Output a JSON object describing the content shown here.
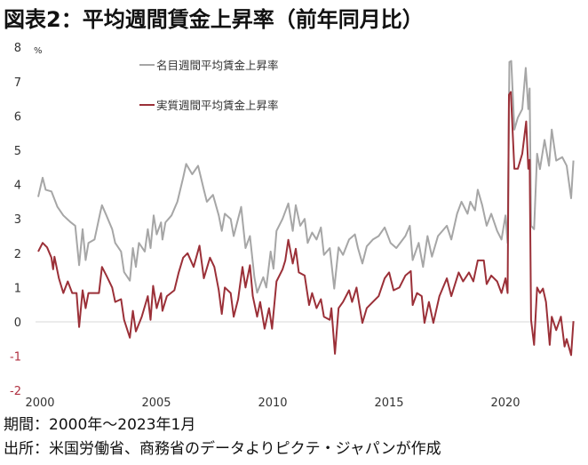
{
  "title": "図表2：平均週間賃金上昇率（前年同月比）",
  "notes": [
    "期間：2000年～2023年1月",
    "出所：米国労働省、商務省のデータよりピクテ・ジャパンが作成"
  ],
  "chart_data": {
    "type": "line",
    "title": "図表2：平均週間賃金上昇率（前年同月比）",
    "ylabel": "%",
    "xlabel": "",
    "xlim": [
      2000,
      2023
    ],
    "ylim": [
      -2,
      8
    ],
    "xticks": [
      2000,
      2005,
      2010,
      2015,
      2020
    ],
    "yticks": [
      8,
      7,
      6,
      5,
      4,
      3,
      2,
      1,
      0,
      -1,
      -2
    ],
    "legend_position": "top-center",
    "grid": false,
    "series": [
      {
        "name": "名目週間平均賃金上昇率",
        "color": "#a6a6a6",
        "points": [
          [
            2000.0,
            3.64
          ],
          [
            2000.19,
            4.2
          ],
          [
            2000.32,
            3.85
          ],
          [
            2000.57,
            3.8
          ],
          [
            2000.83,
            3.35
          ],
          [
            2001.08,
            3.1
          ],
          [
            2001.4,
            2.9
          ],
          [
            2001.59,
            2.8
          ],
          [
            2001.76,
            1.65
          ],
          [
            2001.91,
            2.7
          ],
          [
            2002.04,
            1.8
          ],
          [
            2002.16,
            2.3
          ],
          [
            2002.42,
            2.4
          ],
          [
            2002.67,
            3.2
          ],
          [
            2002.74,
            3.4
          ],
          [
            2002.93,
            3.1
          ],
          [
            2003.18,
            2.7
          ],
          [
            2003.31,
            2.3
          ],
          [
            2003.56,
            2.05
          ],
          [
            2003.69,
            1.45
          ],
          [
            2003.94,
            1.2
          ],
          [
            2004.07,
            2.15
          ],
          [
            2004.2,
            1.6
          ],
          [
            2004.33,
            2.3
          ],
          [
            2004.58,
            2.05
          ],
          [
            2004.71,
            2.7
          ],
          [
            2004.83,
            2.15
          ],
          [
            2004.96,
            3.1
          ],
          [
            2005.09,
            2.55
          ],
          [
            2005.28,
            2.9
          ],
          [
            2005.34,
            2.4
          ],
          [
            2005.47,
            2.9
          ],
          [
            2005.73,
            3.1
          ],
          [
            2005.98,
            3.5
          ],
          [
            2006.23,
            4.2
          ],
          [
            2006.36,
            4.6
          ],
          [
            2006.62,
            4.3
          ],
          [
            2006.87,
            4.55
          ],
          [
            2007.12,
            3.85
          ],
          [
            2007.25,
            3.5
          ],
          [
            2007.51,
            3.7
          ],
          [
            2007.76,
            3.1
          ],
          [
            2007.89,
            2.65
          ],
          [
            2008.02,
            3.15
          ],
          [
            2008.27,
            3.0
          ],
          [
            2008.4,
            2.5
          ],
          [
            2008.72,
            3.35
          ],
          [
            2008.91,
            2.15
          ],
          [
            2009.1,
            2.5
          ],
          [
            2009.29,
            1.3
          ],
          [
            2009.41,
            0.85
          ],
          [
            2009.67,
            1.3
          ],
          [
            2009.8,
            1.0
          ],
          [
            2009.99,
            2.05
          ],
          [
            2010.11,
            1.55
          ],
          [
            2010.24,
            2.65
          ],
          [
            2010.5,
            3.0
          ],
          [
            2010.75,
            3.45
          ],
          [
            2010.94,
            2.65
          ],
          [
            2011.07,
            3.4
          ],
          [
            2011.26,
            2.8
          ],
          [
            2011.45,
            3.0
          ],
          [
            2011.58,
            2.3
          ],
          [
            2011.77,
            2.6
          ],
          [
            2011.96,
            2.4
          ],
          [
            2012.15,
            2.75
          ],
          [
            2012.28,
            1.95
          ],
          [
            2012.53,
            2.15
          ],
          [
            2012.72,
            0.97
          ],
          [
            2012.91,
            2.17
          ],
          [
            2013.1,
            1.95
          ],
          [
            2013.36,
            2.4
          ],
          [
            2013.61,
            2.55
          ],
          [
            2013.74,
            2.15
          ],
          [
            2013.93,
            1.7
          ],
          [
            2014.12,
            2.2
          ],
          [
            2014.38,
            2.4
          ],
          [
            2014.63,
            2.5
          ],
          [
            2014.89,
            2.75
          ],
          [
            2015.14,
            2.3
          ],
          [
            2015.39,
            2.15
          ],
          [
            2015.78,
            2.5
          ],
          [
            2015.97,
            2.8
          ],
          [
            2016.09,
            1.8
          ],
          [
            2016.35,
            2.3
          ],
          [
            2016.54,
            1.6
          ],
          [
            2016.73,
            2.5
          ],
          [
            2016.92,
            1.9
          ],
          [
            2017.18,
            2.5
          ],
          [
            2017.56,
            2.8
          ],
          [
            2017.75,
            2.4
          ],
          [
            2018.0,
            3.15
          ],
          [
            2018.19,
            3.5
          ],
          [
            2018.45,
            3.15
          ],
          [
            2018.57,
            3.5
          ],
          [
            2018.77,
            3.25
          ],
          [
            2018.89,
            3.85
          ],
          [
            2019.08,
            3.4
          ],
          [
            2019.27,
            2.8
          ],
          [
            2019.47,
            3.15
          ],
          [
            2019.72,
            2.65
          ],
          [
            2019.91,
            2.4
          ],
          [
            2020.08,
            3.1
          ],
          [
            2020.17,
            2.3
          ],
          [
            2020.25,
            7.57
          ],
          [
            2020.33,
            7.6
          ],
          [
            2020.46,
            5.6
          ],
          [
            2020.61,
            5.95
          ],
          [
            2020.8,
            6.2
          ],
          [
            2020.95,
            7.4
          ],
          [
            2021.06,
            6.2
          ],
          [
            2021.12,
            6.8
          ],
          [
            2021.18,
            2.8
          ],
          [
            2021.31,
            2.7
          ],
          [
            2021.44,
            4.9
          ],
          [
            2021.56,
            4.45
          ],
          [
            2021.76,
            5.3
          ],
          [
            2021.95,
            4.55
          ],
          [
            2022.07,
            5.6
          ],
          [
            2022.26,
            4.7
          ],
          [
            2022.52,
            4.8
          ],
          [
            2022.71,
            4.55
          ],
          [
            2022.9,
            3.6
          ],
          [
            2023.0,
            4.7
          ]
        ]
      },
      {
        "name": "実質週間平均賃金上昇率",
        "color": "#9b3038",
        "points": [
          [
            2000.0,
            2.05
          ],
          [
            2000.19,
            2.3
          ],
          [
            2000.38,
            2.17
          ],
          [
            2000.57,
            1.87
          ],
          [
            2000.64,
            1.53
          ],
          [
            2000.7,
            1.9
          ],
          [
            2000.89,
            1.27
          ],
          [
            2001.08,
            0.84
          ],
          [
            2001.27,
            1.18
          ],
          [
            2001.46,
            0.84
          ],
          [
            2001.65,
            0.84
          ],
          [
            2001.76,
            -0.15
          ],
          [
            2001.91,
            0.92
          ],
          [
            2002.04,
            0.4
          ],
          [
            2002.16,
            0.84
          ],
          [
            2002.42,
            0.84
          ],
          [
            2002.61,
            0.84
          ],
          [
            2002.74,
            1.6
          ],
          [
            2002.93,
            1.35
          ],
          [
            2003.18,
            1.0
          ],
          [
            2003.31,
            0.58
          ],
          [
            2003.56,
            0.66
          ],
          [
            2003.69,
            0.06
          ],
          [
            2003.94,
            -0.46
          ],
          [
            2004.07,
            0.32
          ],
          [
            2004.2,
            -0.28
          ],
          [
            2004.45,
            0.15
          ],
          [
            2004.71,
            0.75
          ],
          [
            2004.83,
            0.06
          ],
          [
            2004.94,
            1.05
          ],
          [
            2005.09,
            0.4
          ],
          [
            2005.28,
            0.84
          ],
          [
            2005.34,
            0.32
          ],
          [
            2005.53,
            0.75
          ],
          [
            2005.85,
            0.92
          ],
          [
            2006.04,
            1.44
          ],
          [
            2006.23,
            1.87
          ],
          [
            2006.42,
            2.0
          ],
          [
            2006.68,
            1.6
          ],
          [
            2006.93,
            2.22
          ],
          [
            2007.12,
            1.27
          ],
          [
            2007.38,
            1.87
          ],
          [
            2007.57,
            1.6
          ],
          [
            2007.76,
            0.92
          ],
          [
            2007.89,
            0.23
          ],
          [
            2008.02,
            1.0
          ],
          [
            2008.27,
            0.84
          ],
          [
            2008.4,
            0.15
          ],
          [
            2008.59,
            0.66
          ],
          [
            2008.78,
            1.6
          ],
          [
            2008.91,
            1.0
          ],
          [
            2009.1,
            1.65
          ],
          [
            2009.22,
            0.75
          ],
          [
            2009.41,
            0.15
          ],
          [
            2009.54,
            0.58
          ],
          [
            2009.73,
            -0.2
          ],
          [
            2009.92,
            0.4
          ],
          [
            2010.05,
            -0.2
          ],
          [
            2010.24,
            1.18
          ],
          [
            2010.5,
            1.53
          ],
          [
            2010.62,
            1.79
          ],
          [
            2010.75,
            2.39
          ],
          [
            2010.94,
            1.7
          ],
          [
            2011.07,
            2.13
          ],
          [
            2011.2,
            1.44
          ],
          [
            2011.45,
            1.35
          ],
          [
            2011.64,
            0.49
          ],
          [
            2011.77,
            0.84
          ],
          [
            2011.96,
            0.4
          ],
          [
            2012.15,
            0.66
          ],
          [
            2012.28,
            0.15
          ],
          [
            2012.53,
            0.06
          ],
          [
            2012.6,
            0.4
          ],
          [
            2012.75,
            -0.93
          ],
          [
            2012.91,
            0.4
          ],
          [
            2013.1,
            0.58
          ],
          [
            2013.36,
            0.92
          ],
          [
            2013.49,
            0.58
          ],
          [
            2013.68,
            1.0
          ],
          [
            2013.8,
            0.49
          ],
          [
            2013.93,
            -0.03
          ],
          [
            2014.12,
            0.4
          ],
          [
            2014.38,
            0.58
          ],
          [
            2014.63,
            0.75
          ],
          [
            2014.89,
            1.27
          ],
          [
            2015.08,
            1.44
          ],
          [
            2015.27,
            0.92
          ],
          [
            2015.52,
            1.0
          ],
          [
            2015.78,
            1.35
          ],
          [
            2016.01,
            1.48
          ],
          [
            2016.09,
            0.49
          ],
          [
            2016.28,
            0.84
          ],
          [
            2016.48,
            0.75
          ],
          [
            2016.6,
            -0.03
          ],
          [
            2016.79,
            0.58
          ],
          [
            2016.98,
            -0.03
          ],
          [
            2017.24,
            0.75
          ],
          [
            2017.56,
            1.27
          ],
          [
            2017.75,
            0.75
          ],
          [
            2018.07,
            1.44
          ],
          [
            2018.26,
            1.18
          ],
          [
            2018.51,
            1.44
          ],
          [
            2018.7,
            1.18
          ],
          [
            2018.89,
            1.79
          ],
          [
            2019.15,
            1.79
          ],
          [
            2019.27,
            1.1
          ],
          [
            2019.47,
            1.35
          ],
          [
            2019.72,
            1.18
          ],
          [
            2019.91,
            0.84
          ],
          [
            2020.08,
            1.27
          ],
          [
            2020.17,
            0.84
          ],
          [
            2020.23,
            6.62
          ],
          [
            2020.31,
            6.7
          ],
          [
            2020.46,
            4.46
          ],
          [
            2020.61,
            4.46
          ],
          [
            2020.8,
            4.9
          ],
          [
            2020.97,
            5.84
          ],
          [
            2021.06,
            4.46
          ],
          [
            2021.12,
            4.72
          ],
          [
            2021.18,
            0.06
          ],
          [
            2021.31,
            -0.67
          ],
          [
            2021.44,
            1.0
          ],
          [
            2021.56,
            0.84
          ],
          [
            2021.69,
            0.97
          ],
          [
            2021.82,
            0.58
          ],
          [
            2021.98,
            -0.67
          ],
          [
            2022.07,
            0.15
          ],
          [
            2022.26,
            -0.24
          ],
          [
            2022.46,
            0.15
          ],
          [
            2022.62,
            -0.72
          ],
          [
            2022.71,
            -0.5
          ],
          [
            2022.9,
            -0.97
          ],
          [
            2023.0,
            0.02
          ]
        ]
      }
    ]
  }
}
